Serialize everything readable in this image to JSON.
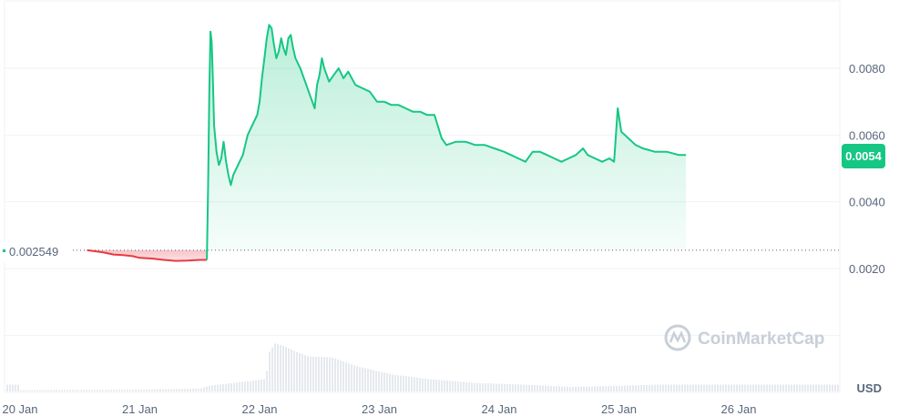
{
  "chart_data": {
    "type": "area",
    "currency": "USD",
    "watermark": "CoinMarketCap",
    "baseline": {
      "label": "0.002549",
      "value": 0.002549
    },
    "current": {
      "label": "0.0054",
      "value": 0.0054
    },
    "y_ticks": [
      {
        "label": "0.0080",
        "value": 0.008
      },
      {
        "label": "0.0060",
        "value": 0.006
      },
      {
        "label": "0.0040",
        "value": 0.004
      },
      {
        "label": "0.0020",
        "value": 0.002
      }
    ],
    "ylim": [
      0,
      0.01
    ],
    "x_ticks": [
      {
        "label": "20 Jan",
        "value": 0
      },
      {
        "label": "21 Jan",
        "value": 1
      },
      {
        "label": "22 Jan",
        "value": 2
      },
      {
        "label": "23 Jan",
        "value": 3
      },
      {
        "label": "24 Jan",
        "value": 4
      },
      {
        "label": "25 Jan",
        "value": 5
      },
      {
        "label": "26 Jan",
        "value": 6
      }
    ],
    "xlim": [
      0,
      7
    ],
    "colors": {
      "up": "#16c784",
      "down": "#ea3943",
      "text": "#58667e",
      "grid": "#eff2f5"
    },
    "price": [
      [
        0.56,
        0.002549
      ],
      [
        0.62,
        0.00252
      ],
      [
        0.7,
        0.00248
      ],
      [
        0.78,
        0.00242
      ],
      [
        0.86,
        0.0024
      ],
      [
        0.94,
        0.00237
      ],
      [
        1.0,
        0.00232
      ],
      [
        1.1,
        0.0023
      ],
      [
        1.2,
        0.00226
      ],
      [
        1.3,
        0.00223
      ],
      [
        1.4,
        0.00224
      ],
      [
        1.5,
        0.00226
      ],
      [
        1.56,
        0.00226
      ],
      [
        1.57,
        0.0045
      ],
      [
        1.58,
        0.0073
      ],
      [
        1.59,
        0.0091
      ],
      [
        1.6,
        0.0088
      ],
      [
        1.61,
        0.0077
      ],
      [
        1.62,
        0.0063
      ],
      [
        1.64,
        0.0055
      ],
      [
        1.66,
        0.0051
      ],
      [
        1.68,
        0.0053
      ],
      [
        1.7,
        0.0058
      ],
      [
        1.72,
        0.0052
      ],
      [
        1.74,
        0.0048
      ],
      [
        1.76,
        0.0045
      ],
      [
        1.78,
        0.0048
      ],
      [
        1.82,
        0.0051
      ],
      [
        1.86,
        0.0054
      ],
      [
        1.9,
        0.006
      ],
      [
        1.94,
        0.0063
      ],
      [
        1.98,
        0.0066
      ],
      [
        2.0,
        0.007
      ],
      [
        2.02,
        0.0077
      ],
      [
        2.04,
        0.0083
      ],
      [
        2.06,
        0.0089
      ],
      [
        2.08,
        0.0093
      ],
      [
        2.1,
        0.0092
      ],
      [
        2.12,
        0.0087
      ],
      [
        2.14,
        0.0083
      ],
      [
        2.16,
        0.0085
      ],
      [
        2.18,
        0.0089
      ],
      [
        2.2,
        0.0086
      ],
      [
        2.22,
        0.0084
      ],
      [
        2.24,
        0.0089
      ],
      [
        2.26,
        0.009
      ],
      [
        2.28,
        0.0086
      ],
      [
        2.3,
        0.0083
      ],
      [
        2.34,
        0.008
      ],
      [
        2.38,
        0.0076
      ],
      [
        2.42,
        0.0072
      ],
      [
        2.46,
        0.0068
      ],
      [
        2.48,
        0.0075
      ],
      [
        2.5,
        0.0078
      ],
      [
        2.52,
        0.0083
      ],
      [
        2.54,
        0.008
      ],
      [
        2.58,
        0.0076
      ],
      [
        2.62,
        0.0078
      ],
      [
        2.66,
        0.008
      ],
      [
        2.7,
        0.0077
      ],
      [
        2.74,
        0.0079
      ],
      [
        2.8,
        0.0075
      ],
      [
        2.86,
        0.0074
      ],
      [
        2.92,
        0.0073
      ],
      [
        2.98,
        0.007
      ],
      [
        3.04,
        0.007
      ],
      [
        3.1,
        0.0069
      ],
      [
        3.16,
        0.0069
      ],
      [
        3.22,
        0.0068
      ],
      [
        3.28,
        0.0067
      ],
      [
        3.34,
        0.0067
      ],
      [
        3.4,
        0.0066
      ],
      [
        3.46,
        0.0066
      ],
      [
        3.52,
        0.0059
      ],
      [
        3.56,
        0.0057
      ],
      [
        3.64,
        0.0058
      ],
      [
        3.72,
        0.0058
      ],
      [
        3.8,
        0.0057
      ],
      [
        3.88,
        0.0057
      ],
      [
        3.96,
        0.0056
      ],
      [
        4.04,
        0.0055
      ],
      [
        4.1,
        0.0054
      ],
      [
        4.16,
        0.0053
      ],
      [
        4.22,
        0.0052
      ],
      [
        4.28,
        0.0055
      ],
      [
        4.34,
        0.0055
      ],
      [
        4.4,
        0.0054
      ],
      [
        4.46,
        0.0053
      ],
      [
        4.52,
        0.0052
      ],
      [
        4.58,
        0.0053
      ],
      [
        4.64,
        0.0054
      ],
      [
        4.7,
        0.0056
      ],
      [
        4.74,
        0.0054
      ],
      [
        4.8,
        0.0053
      ],
      [
        4.86,
        0.0052
      ],
      [
        4.92,
        0.0053
      ],
      [
        4.96,
        0.0052
      ],
      [
        4.99,
        0.0068
      ],
      [
        5.02,
        0.0061
      ],
      [
        5.08,
        0.0059
      ],
      [
        5.14,
        0.0057
      ],
      [
        5.2,
        0.0056
      ],
      [
        5.3,
        0.0055
      ],
      [
        5.4,
        0.0055
      ],
      [
        5.5,
        0.0054
      ],
      [
        5.56,
        0.0054
      ]
    ],
    "volume": [
      [
        0.0,
        0.02
      ],
      [
        1.0,
        0.03
      ],
      [
        1.5,
        0.05
      ],
      [
        1.57,
        0.1
      ],
      [
        1.9,
        0.18
      ],
      [
        2.05,
        0.22
      ],
      [
        2.06,
        0.65
      ],
      [
        2.12,
        0.85
      ],
      [
        2.2,
        0.8
      ],
      [
        2.3,
        0.7
      ],
      [
        2.4,
        0.62
      ],
      [
        2.6,
        0.6
      ],
      [
        2.8,
        0.45
      ],
      [
        3.1,
        0.3
      ],
      [
        3.4,
        0.22
      ],
      [
        3.8,
        0.15
      ],
      [
        4.2,
        0.12
      ],
      [
        4.6,
        0.08
      ],
      [
        4.99,
        0.1
      ],
      [
        5.3,
        0.12
      ],
      [
        5.56,
        0.12
      ]
    ]
  }
}
